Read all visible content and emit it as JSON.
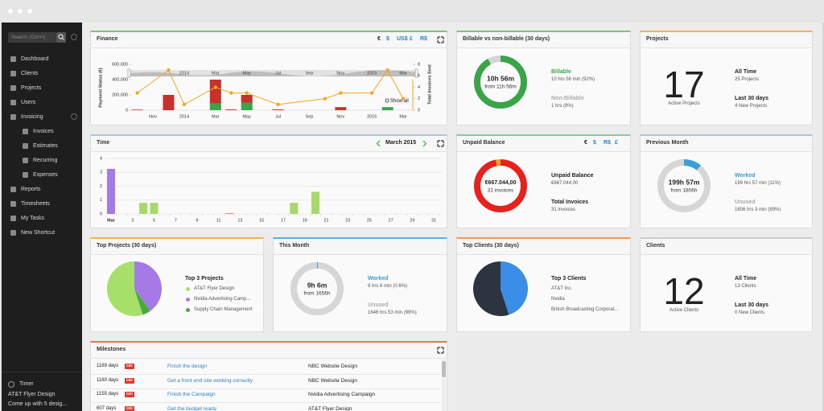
{
  "sidebar": {
    "search": "Search (Ctrl+/)",
    "menu": [
      "Dashboard",
      "Clients",
      "Projects",
      "Users",
      "Invoicing"
    ],
    "submenu": [
      "Invoices",
      "Estimates",
      "Recurring",
      "Expenses"
    ],
    "menu_more": [
      "Reports",
      "Timesheets",
      "My Tasks",
      "New Shortcut"
    ],
    "timer": {
      "label": "Timer",
      "project": "AT&T Flyer Design",
      "task": "Come up with 5 desig..."
    }
  },
  "finance": {
    "title": "Finance",
    "currencies": [
      "€",
      "$",
      "US$",
      "£",
      "R$"
    ],
    "show_all": "Show all",
    "navigator_labels": [
      "2014",
      "Mar",
      "May",
      "Jul",
      "Sep",
      "Nov",
      "2015",
      "Mar"
    ],
    "chart": {
      "type": "bar",
      "stacked": true,
      "categories": [
        null,
        "Nov",
        null,
        "2014",
        null,
        "Mar",
        null,
        "May",
        null,
        "Jul",
        null,
        "Sep",
        null,
        "Nov",
        null,
        "2015",
        null,
        "Mar"
      ],
      "ylabel": "Payment Status (€)",
      "y2label": "Total Invoices Sent",
      "ylim": [
        0,
        600000
      ],
      "yticks": [
        0,
        {
          "value": 200000,
          "label": "200,000"
        },
        {
          "value": 400000,
          "label": "400,000"
        },
        {
          "value": 600000,
          "label": "600,000"
        }
      ],
      "y2lim": [
        0,
        8
      ],
      "y2ticks": [
        0,
        2,
        4,
        6,
        8
      ],
      "series": [
        {
          "color": "#3aa548",
          "values": [
            0,
            0,
            0,
            0,
            0,
            90000,
            0,
            100000,
            0,
            0,
            0,
            0,
            0,
            0,
            0,
            0,
            40000,
            0
          ]
        },
        {
          "color": "#c8312b",
          "values": [
            8000,
            0,
            200000,
            0,
            0,
            310000,
            10000,
            100000,
            0,
            10000,
            0,
            0,
            0,
            40000,
            0,
            0,
            0,
            0
          ]
        },
        {
          "type": "line",
          "axis": "y2",
          "color": "#f5a623",
          "x": [
            0,
            2,
            3,
            5,
            6,
            7,
            9,
            12,
            13,
            15,
            16,
            17
          ],
          "values": [
            3,
            7,
            1,
            4,
            3,
            3,
            1,
            2,
            3,
            3,
            7,
            2
          ]
        }
      ]
    }
  },
  "time": {
    "title": "Time",
    "period": "March 2015",
    "chart": {
      "type": "bar",
      "stacked": true,
      "grid": true,
      "categories": [
        "Mar",
        null,
        "3",
        null,
        "5",
        null,
        "7",
        null,
        "9",
        null,
        "11",
        null,
        "13",
        null,
        "15",
        null,
        "17",
        null,
        "19",
        null,
        "21",
        null,
        "23",
        null,
        "25",
        null,
        "27",
        null,
        "29",
        null,
        "31"
      ],
      "ylim": [
        0,
        4
      ],
      "yticks": [
        0,
        1,
        2,
        3,
        4
      ],
      "series": [
        {
          "color": "#a67ae6",
          "values": [
            3.25,
            0,
            0,
            0,
            0,
            0,
            0,
            0,
            0,
            0,
            0,
            0,
            0,
            0,
            0,
            0,
            0,
            0,
            0,
            0,
            0,
            0,
            0,
            0,
            0,
            0,
            0,
            0,
            0,
            0,
            0
          ]
        },
        {
          "color": "#a6d86a",
          "values": [
            0,
            0,
            0,
            0.8,
            0.8,
            0,
            0,
            0,
            0,
            0,
            0,
            0,
            0,
            0,
            0,
            0,
            0,
            0.8,
            0,
            1.6,
            0,
            0,
            0,
            0,
            0,
            0,
            0,
            0,
            0,
            0,
            0
          ]
        },
        {
          "color": "#e8734a",
          "values": [
            0,
            0,
            0,
            0,
            0,
            0,
            0,
            0,
            0,
            0,
            0,
            0.05,
            0,
            0,
            0,
            0,
            0,
            0,
            0,
            0,
            0,
            0,
            0,
            0,
            0,
            0,
            0,
            0,
            0,
            0,
            0
          ]
        }
      ]
    }
  },
  "billable": {
    "title": "Billable vs non-billable (30 days)",
    "center": "10h 56m",
    "center_sub": "from 11h 56m",
    "items": [
      {
        "label": "Billable",
        "detail": "10 hrs 56 min (92%)",
        "value": 92,
        "color": "#3aa548"
      },
      {
        "label": "Non-Billable",
        "detail": "1 hrs (8%)",
        "value": 8,
        "color": "#d6d6d6"
      }
    ]
  },
  "projects": {
    "title": "Projects",
    "count": 17,
    "count_label": "Active Projects",
    "stats": [
      {
        "label": "All Time",
        "value": "25 Projects"
      },
      {
        "label": "Last 30 days",
        "value": "4 New Projects"
      }
    ]
  },
  "unpaid": {
    "title": "Unpaid Balance",
    "currencies": [
      "€",
      "$",
      "R$",
      "£"
    ],
    "center": "€667.044,00",
    "center_sub": "31 invoices",
    "items": [
      {
        "label": "Unpaid Balance",
        "detail": "€667.044,00"
      },
      {
        "label": "Total Invoices",
        "detail": "31 invoices"
      }
    ],
    "segments": [
      {
        "value": 97,
        "color": "#e8211c"
      },
      {
        "value": 3,
        "color": "#f5a623"
      }
    ]
  },
  "previous_month": {
    "title": "Previous Month",
    "center": "199h 57m",
    "center_sub": "from 1806h",
    "items": [
      {
        "label": "Worked",
        "detail": "199 hrs 57 min (11%)",
        "value": 11,
        "color": "#3aa0d8"
      },
      {
        "label": "Unused",
        "detail": "1606 hrs 3 min (89%)",
        "value": 89,
        "color": "#d6d6d6"
      }
    ]
  },
  "top_projects": {
    "title": "Top Projects (30 days)",
    "legend_title": "Top 3 Projects",
    "items": [
      {
        "label": "AT&T Flyer Design",
        "value": 55,
        "color": "#a6e06a"
      },
      {
        "label": "Nvidia Advertising Camp...",
        "value": 40,
        "color": "#a67ae6"
      },
      {
        "label": "Supply Chain Management",
        "value": 5,
        "color": "#4aaa3c"
      }
    ]
  },
  "this_month": {
    "title": "This Month",
    "center": "9h 6m",
    "center_sub": "from 1656h",
    "items": [
      {
        "label": "Worked",
        "detail": "9 hrs 6 min (0.6%)",
        "value": 0.6,
        "color": "#3aa0d8"
      },
      {
        "label": "Unused",
        "detail": "1646 hrs 53 min (99%)",
        "value": 99,
        "color": "#d6d6d6"
      }
    ]
  },
  "top_clients": {
    "title": "Top Clients (30 days)",
    "legend_title": "Top 3 Clients",
    "items": [
      {
        "label": "AT&T Inc.",
        "value": 55,
        "color": "#2c3440"
      },
      {
        "label": "Nvidia",
        "value": 45,
        "color": "#3a8ee6"
      },
      {
        "label": "British Broadcasting Corporat..."
      }
    ]
  },
  "clients": {
    "title": "Clients",
    "count": 12,
    "count_label": "Active Clients",
    "stats": [
      {
        "label": "All Time",
        "value": "13 Clients"
      },
      {
        "label": "Last 30 days",
        "value": "0 New Clients"
      }
    ]
  },
  "milestones": {
    "title": "Milestones",
    "late": "late",
    "rows": [
      [
        "1169 days",
        "Finish the design",
        "NBC Website Design"
      ],
      [
        "1160 days",
        "Get a front end site working correctly.",
        "NBC Website Design"
      ],
      [
        "1155 days",
        "Finish the Campaign",
        "Nvidia Advertising Campaign"
      ],
      [
        "607 days",
        "Get the budget ready",
        "AT&T Flyer Design"
      ]
    ]
  }
}
